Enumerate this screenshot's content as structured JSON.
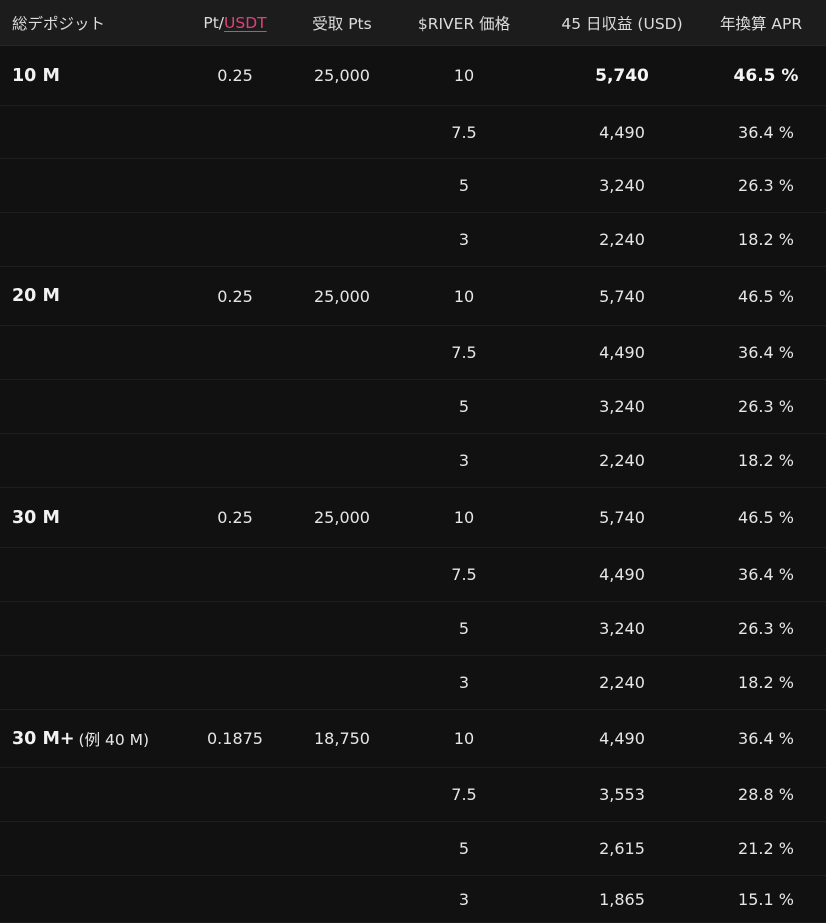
{
  "header": {
    "col1": "総デポジット",
    "col2_prefix": "Pt/",
    "col2_link": "USDT",
    "col3": "受取 Pts",
    "col4": "$RIVER 価格",
    "col5": "45 日収益 (USD)",
    "col6": "年換算 APR"
  },
  "colors": {
    "background": "#111111",
    "header_background": "#1c1c1c",
    "text": "#e6e6e6",
    "link_accent": "#e0407a"
  },
  "groups": [
    {
      "label": "10 M",
      "suffix": "",
      "pt_per_usdt": "0.25",
      "received_pts": "25,000",
      "rows": [
        {
          "price": "10",
          "profit": "5,740",
          "apr": "46.5 %"
        },
        {
          "price": "7.5",
          "profit": "4,490",
          "apr": "36.4 %"
        },
        {
          "price": "5",
          "profit": "3,240",
          "apr": "26.3 %"
        },
        {
          "price": "3",
          "profit": "2,240",
          "apr": "18.2 %"
        }
      ]
    },
    {
      "label": "20 M",
      "suffix": "",
      "pt_per_usdt": "0.25",
      "received_pts": "25,000",
      "rows": [
        {
          "price": "10",
          "profit": "5,740",
          "apr": "46.5 %"
        },
        {
          "price": "7.5",
          "profit": "4,490",
          "apr": "36.4 %"
        },
        {
          "price": "5",
          "profit": "3,240",
          "apr": "26.3 %"
        },
        {
          "price": "3",
          "profit": "2,240",
          "apr": "18.2 %"
        }
      ]
    },
    {
      "label": "30 M",
      "suffix": "",
      "pt_per_usdt": "0.25",
      "received_pts": "25,000",
      "rows": [
        {
          "price": "10",
          "profit": "5,740",
          "apr": "46.5 %"
        },
        {
          "price": "7.5",
          "profit": "4,490",
          "apr": "36.4 %"
        },
        {
          "price": "5",
          "profit": "3,240",
          "apr": "26.3 %"
        },
        {
          "price": "3",
          "profit": "2,240",
          "apr": "18.2 %"
        }
      ]
    },
    {
      "label": "30 M+",
      "suffix": "(例 40 M)",
      "pt_per_usdt": "0.1875",
      "received_pts": "18,750",
      "rows": [
        {
          "price": "10",
          "profit": "4,490",
          "apr": "36.4 %"
        },
        {
          "price": "7.5",
          "profit": "3,553",
          "apr": "28.8 %"
        },
        {
          "price": "5",
          "profit": "2,615",
          "apr": "21.2 %"
        },
        {
          "price": "3",
          "profit": "1,865",
          "apr": "15.1 %"
        }
      ]
    }
  ]
}
